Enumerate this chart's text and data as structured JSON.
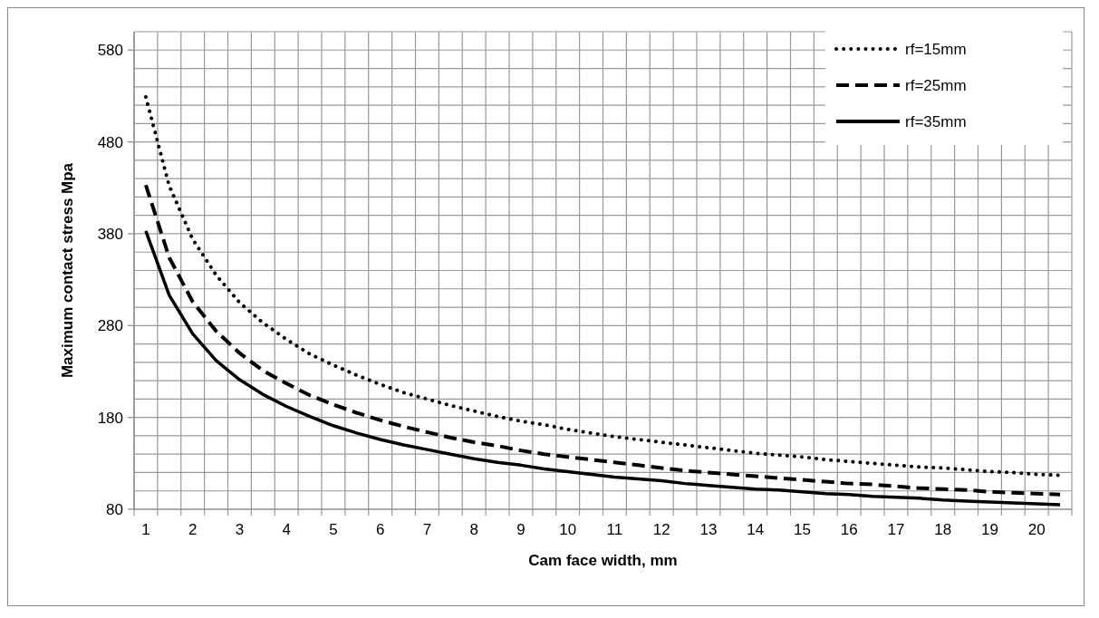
{
  "chart_data": {
    "type": "line",
    "xlabel": "Cam face width, mm",
    "ylabel": "Maximum contact stress Mpa",
    "categories": [
      "1",
      null,
      "2",
      null,
      "3",
      null,
      "4",
      null,
      "5",
      null,
      "6",
      null,
      "7",
      null,
      "8",
      null,
      "9",
      null,
      "10",
      null,
      "11",
      null,
      "12",
      null,
      "13",
      null,
      "14",
      null,
      "15",
      null,
      "16",
      null,
      "17",
      null,
      "18",
      null,
      "19",
      null,
      "20",
      null
    ],
    "series": [
      {
        "name": "rf=15mm",
        "color": "#000000",
        "line_style": "dotted",
        "values": [
          529,
          432,
          374,
          335,
          305,
          283,
          265,
          249,
          237,
          226,
          216,
          207,
          200,
          193,
          187,
          181,
          176,
          172,
          167,
          163,
          159,
          156,
          153,
          150,
          147,
          144,
          141,
          139,
          137,
          134,
          132,
          130,
          128,
          126,
          125,
          123,
          121,
          120,
          118,
          117
        ]
      },
      {
        "name": "rf=25mm",
        "color": "#000000",
        "line_style": "dashed",
        "values": [
          433,
          354,
          306,
          274,
          250,
          231,
          217,
          204,
          194,
          185,
          177,
          170,
          164,
          158,
          153,
          149,
          144,
          140,
          137,
          134,
          131,
          128,
          125,
          122,
          120,
          118,
          116,
          114,
          112,
          110,
          108,
          107,
          105,
          103,
          102,
          101,
          99,
          98,
          97,
          96
        ]
      },
      {
        "name": "rf=35mm",
        "color": "#000000",
        "line_style": "solid",
        "values": [
          383,
          313,
          271,
          242,
          221,
          205,
          192,
          181,
          171,
          163,
          156,
          150,
          145,
          140,
          135,
          131,
          128,
          124,
          121,
          118,
          115,
          113,
          111,
          108,
          106,
          104,
          102,
          101,
          99,
          97,
          96,
          94,
          93,
          92,
          90,
          89,
          88,
          87,
          86,
          85
        ]
      }
    ],
    "ylim": [
      80,
      600
    ],
    "yticks": [
      80,
      {
        "value": 100,
        "label": null
      },
      {
        "value": 120,
        "label": null
      },
      {
        "value": 140,
        "label": null
      },
      {
        "value": 160,
        "label": null
      },
      180,
      {
        "value": 200,
        "label": null
      },
      {
        "value": 220,
        "label": null
      },
      {
        "value": 240,
        "label": null
      },
      {
        "value": 260,
        "label": null
      },
      280,
      {
        "value": 300,
        "label": null
      },
      {
        "value": 320,
        "label": null
      },
      {
        "value": 340,
        "label": null
      },
      {
        "value": 360,
        "label": null
      },
      380,
      {
        "value": 400,
        "label": null
      },
      {
        "value": 420,
        "label": null
      },
      {
        "value": 440,
        "label": null
      },
      {
        "value": 460,
        "label": null
      },
      480,
      {
        "value": 500,
        "label": null
      },
      {
        "value": 520,
        "label": null
      },
      {
        "value": 540,
        "label": null
      },
      {
        "value": 560,
        "label": null
      },
      580,
      {
        "value": 600,
        "label": null
      }
    ],
    "grid": true,
    "legend": "top right",
    "marker": "none"
  }
}
